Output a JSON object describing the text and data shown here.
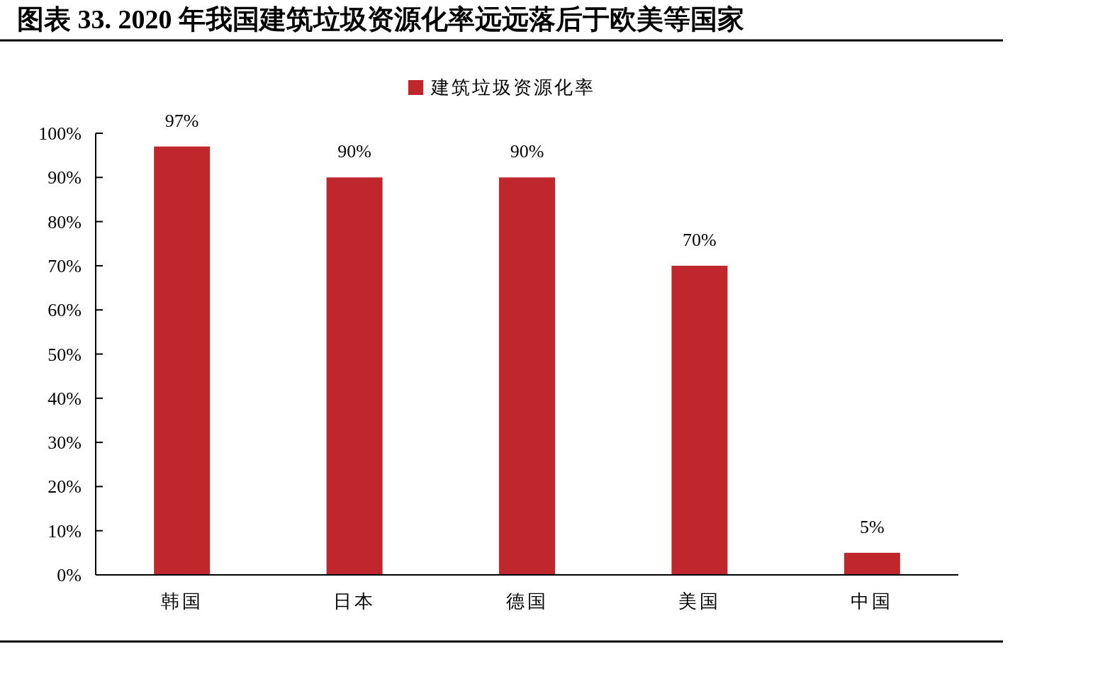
{
  "chart_data": {
    "type": "bar",
    "title": "图表 33. 2020 年我国建筑垃圾资源化率远远落后于欧美等国家",
    "categories": [
      "韩国",
      "日本",
      "德国",
      "美国",
      "中国"
    ],
    "series": [
      {
        "name": "建筑垃圾资源化率",
        "color": "#c0272d",
        "values": [
          97,
          90,
          90,
          70,
          5
        ],
        "value_labels": [
          "97%",
          "90%",
          "90%",
          "70%",
          "5%"
        ]
      }
    ],
    "ylim": [
      0,
      100
    ],
    "yticks": [
      {
        "value": 0,
        "label": "0%"
      },
      {
        "value": 10,
        "label": "10%"
      },
      {
        "value": 20,
        "label": "20%"
      },
      {
        "value": 30,
        "label": "30%"
      },
      {
        "value": 40,
        "label": "40%"
      },
      {
        "value": 50,
        "label": "50%"
      },
      {
        "value": 60,
        "label": "60%"
      },
      {
        "value": 70,
        "label": "70%"
      },
      {
        "value": 80,
        "label": "80%"
      },
      {
        "value": 90,
        "label": "90%"
      },
      {
        "value": 100,
        "label": "100%"
      }
    ],
    "grid": false,
    "legend": "top"
  }
}
